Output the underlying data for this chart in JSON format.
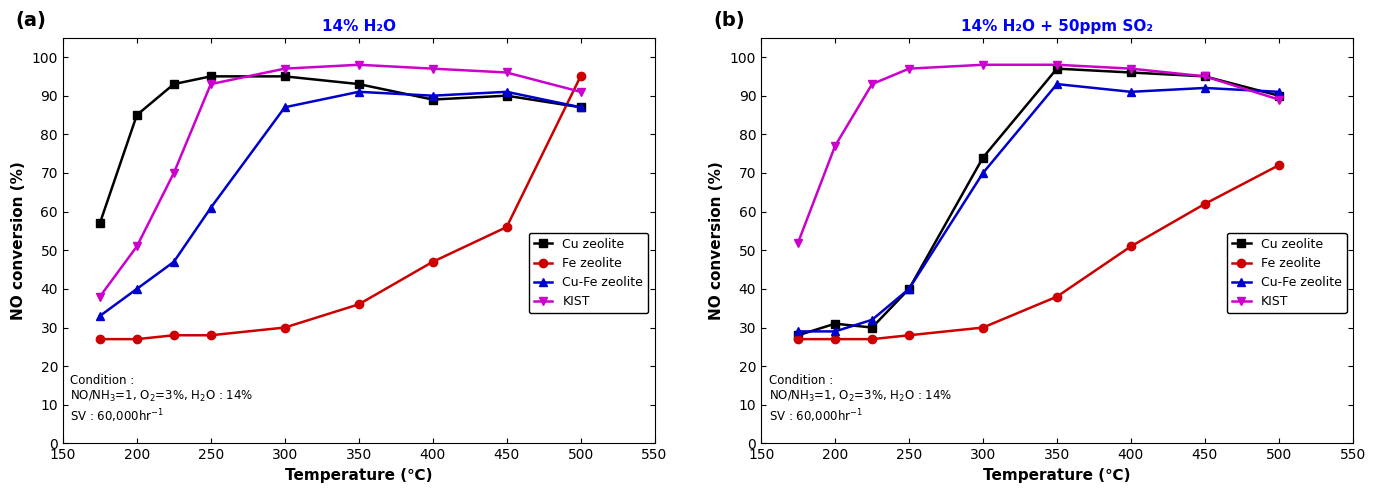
{
  "panel_a": {
    "title": "14% H₂O",
    "label": "(a)",
    "cu_zeolite": {
      "x": [
        175,
        200,
        225,
        250,
        300,
        350,
        400,
        450,
        500
      ],
      "y": [
        57,
        85,
        93,
        95,
        95,
        93,
        89,
        90,
        87
      ]
    },
    "fe_zeolite": {
      "x": [
        175,
        200,
        225,
        250,
        300,
        350,
        400,
        450,
        500
      ],
      "y": [
        27,
        27,
        28,
        28,
        30,
        36,
        47,
        56,
        95
      ]
    },
    "cufe_zeolite": {
      "x": [
        175,
        200,
        225,
        250,
        300,
        350,
        400,
        450,
        500
      ],
      "y": [
        33,
        40,
        47,
        61,
        87,
        91,
        90,
        91,
        87
      ]
    },
    "kist": {
      "x": [
        175,
        200,
        225,
        250,
        300,
        350,
        400,
        450,
        500
      ],
      "y": [
        38,
        51,
        70,
        93,
        97,
        98,
        97,
        96,
        91
      ]
    }
  },
  "panel_b": {
    "title": "14% H₂O + 50ppm SO₂",
    "label": "(b)",
    "cu_zeolite": {
      "x": [
        175,
        200,
        225,
        250,
        300,
        350,
        400,
        450,
        500
      ],
      "y": [
        28,
        31,
        30,
        40,
        74,
        97,
        96,
        95,
        90
      ]
    },
    "fe_zeolite": {
      "x": [
        175,
        200,
        225,
        250,
        300,
        350,
        400,
        450,
        500
      ],
      "y": [
        27,
        27,
        27,
        28,
        30,
        38,
        51,
        62,
        72
      ]
    },
    "cufe_zeolite": {
      "x": [
        175,
        200,
        225,
        250,
        300,
        350,
        400,
        450,
        500
      ],
      "y": [
        29,
        29,
        32,
        40,
        70,
        93,
        91,
        92,
        91
      ]
    },
    "kist": {
      "x": [
        175,
        200,
        225,
        250,
        300,
        350,
        400,
        450,
        500
      ],
      "y": [
        52,
        77,
        93,
        97,
        98,
        98,
        97,
        95,
        89
      ]
    }
  },
  "colors": {
    "cu_zeolite": "#000000",
    "fe_zeolite": "#cc0000",
    "cufe_zeolite": "#0000cc",
    "kist": "#cc00cc"
  },
  "legend_labels": [
    "Cu zeolite",
    "Fe zeolite",
    "Cu-Fe zeolite",
    "KIST"
  ],
  "xlabel": "Temperature (℃)",
  "ylabel": "NO conversion (%)",
  "xlim": [
    150,
    550
  ],
  "ylim": [
    0,
    105
  ],
  "yticks": [
    0,
    10,
    20,
    30,
    40,
    50,
    60,
    70,
    80,
    90,
    100
  ],
  "xticks": [
    150,
    200,
    250,
    300,
    350,
    400,
    450,
    500,
    550
  ],
  "title_color": "#0000ff"
}
